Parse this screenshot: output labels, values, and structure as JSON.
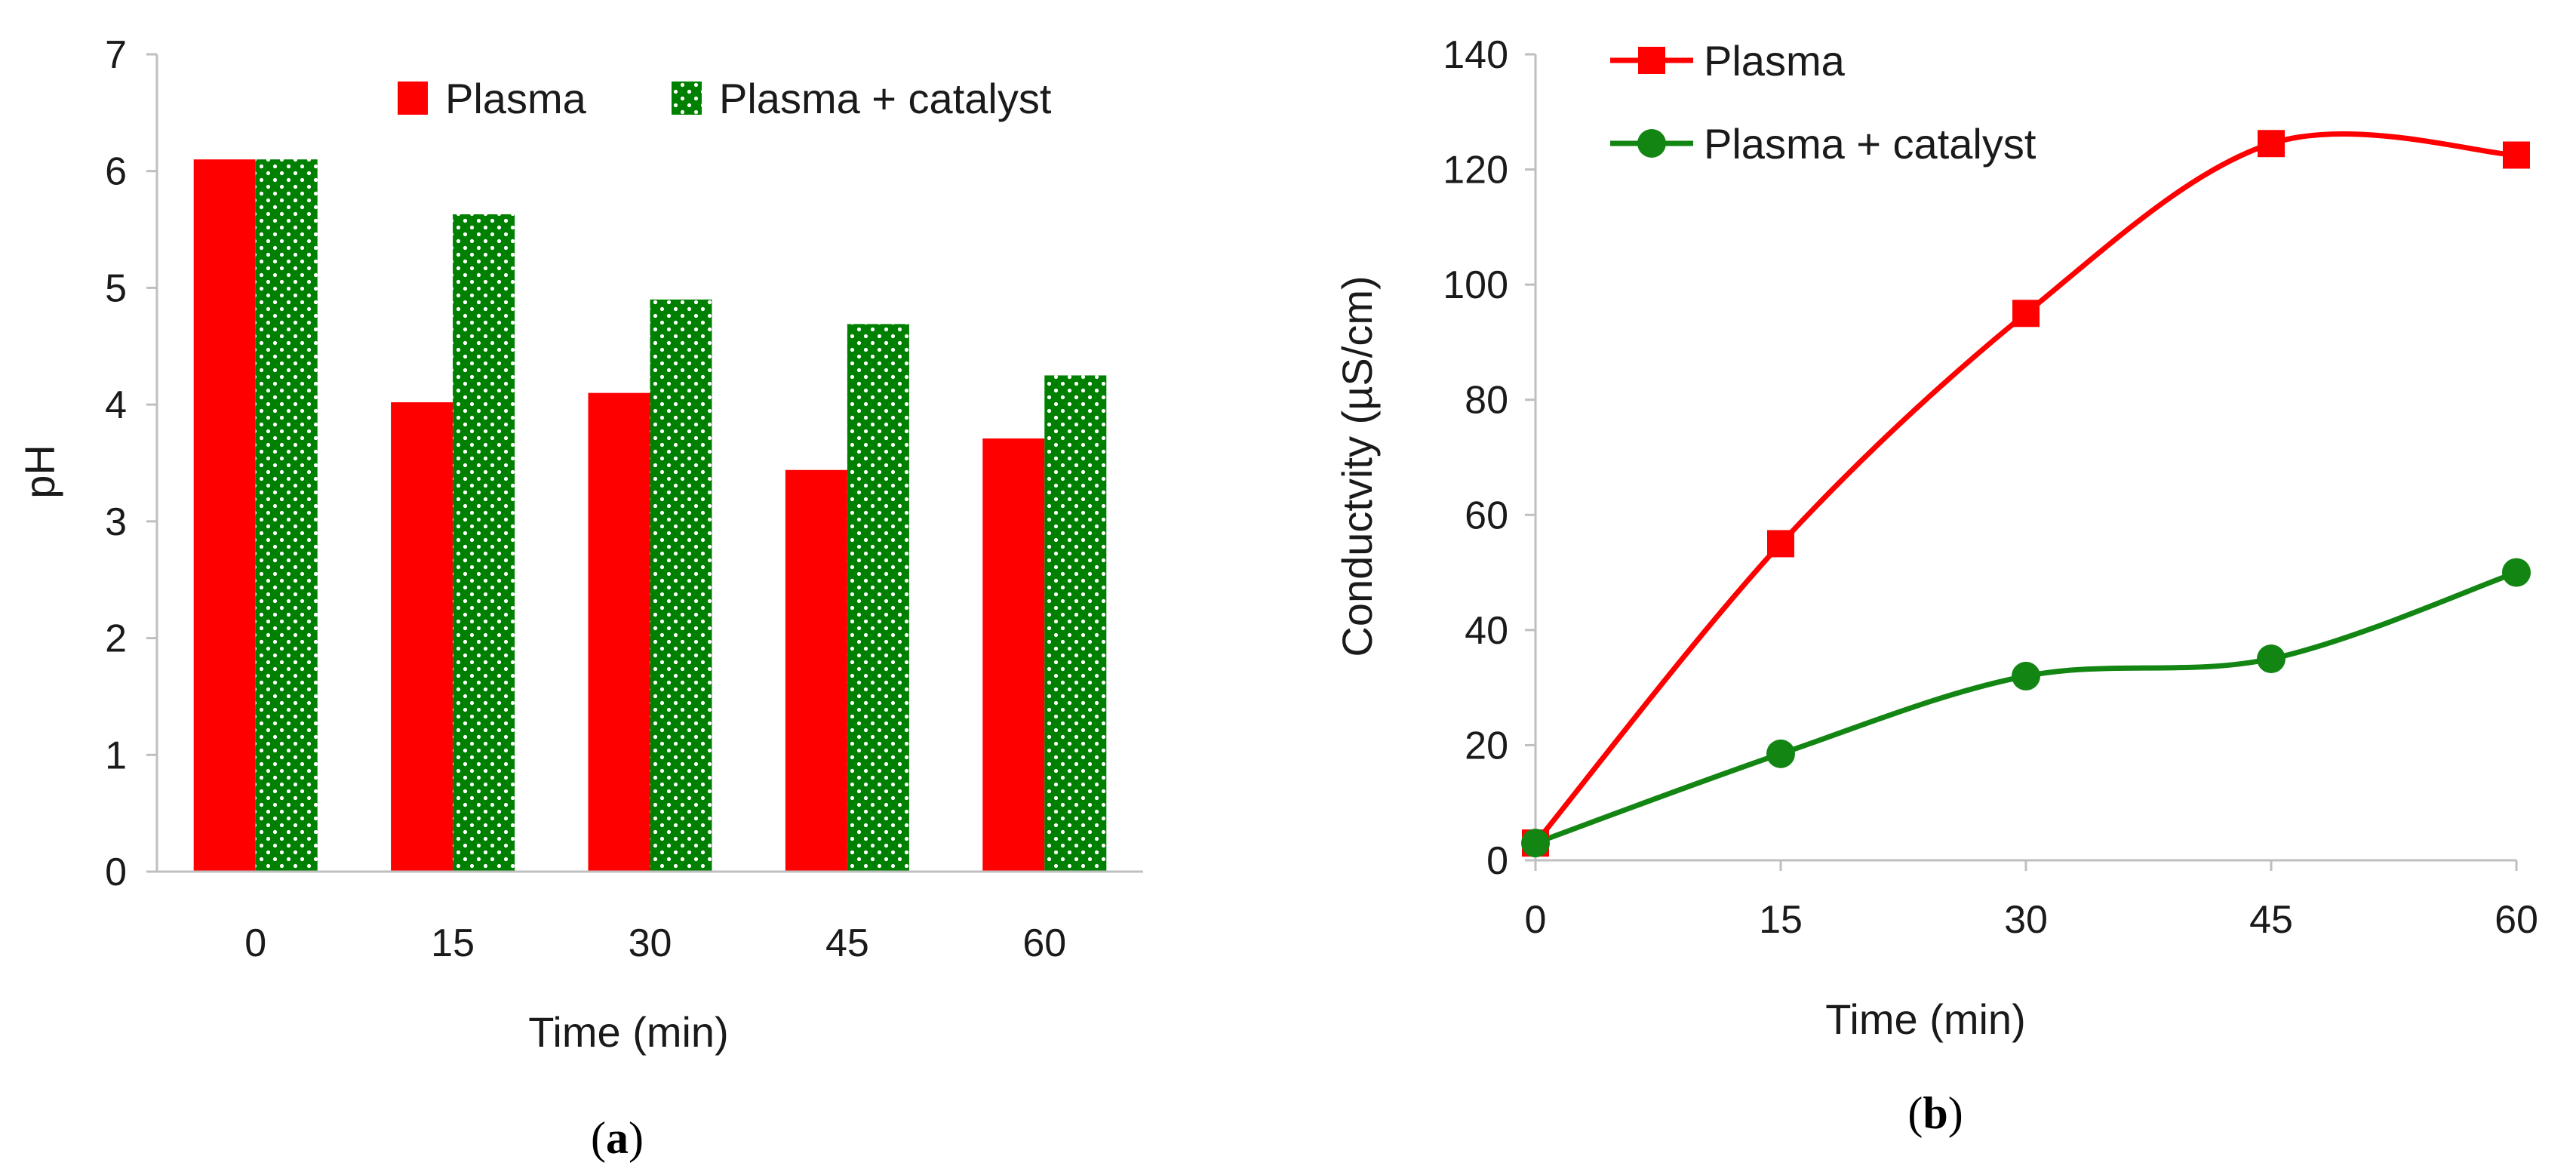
{
  "figures": {
    "a": {
      "caption_open": "(",
      "caption_letter": "a",
      "caption_close": ")"
    },
    "b": {
      "caption_open": "(",
      "caption_letter": "b",
      "caption_close": ")"
    }
  },
  "chart_data": [
    {
      "id": "a",
      "type": "bar",
      "title": "",
      "xlabel": "Time (min)",
      "ylabel": "pH",
      "categories": [
        "0",
        "15",
        "30",
        "45",
        "60"
      ],
      "ylim": [
        0,
        7
      ],
      "yticks": [
        "0",
        "1",
        "2",
        "3",
        "4",
        "5",
        "6",
        "7"
      ],
      "grid": false,
      "legend_position": "top",
      "series": [
        {
          "name": "Plasma",
          "color": "#ff0000",
          "pattern": "solid",
          "values": [
            6.1,
            4.02,
            4.1,
            3.44,
            3.71
          ]
        },
        {
          "name": "Plasma + catalyst",
          "color": "#008000",
          "pattern": "white-dots",
          "values": [
            6.1,
            5.63,
            4.9,
            4.69,
            4.25
          ]
        }
      ]
    },
    {
      "id": "b",
      "type": "line",
      "title": "",
      "xlabel": "Time (min)",
      "ylabel": "Conductvity (µS/cm)",
      "x": [
        0,
        15,
        30,
        45,
        60
      ],
      "xticks": [
        "0",
        "15",
        "30",
        "45",
        "60"
      ],
      "xlim": [
        0,
        60
      ],
      "ylim": [
        0,
        140
      ],
      "yticks": [
        "0",
        "20",
        "40",
        "60",
        "80",
        "100",
        "120",
        "140"
      ],
      "grid": false,
      "smooth": true,
      "legend_position": "top-left",
      "series": [
        {
          "name": "Plasma",
          "color": "#ff0000",
          "marker": "square",
          "values": [
            3,
            55,
            95,
            124.5,
            122.5
          ]
        },
        {
          "name": "Plasma + catalyst",
          "color": "#138513",
          "marker": "circle",
          "values": [
            3,
            18.5,
            32,
            35,
            50
          ]
        }
      ]
    }
  ]
}
